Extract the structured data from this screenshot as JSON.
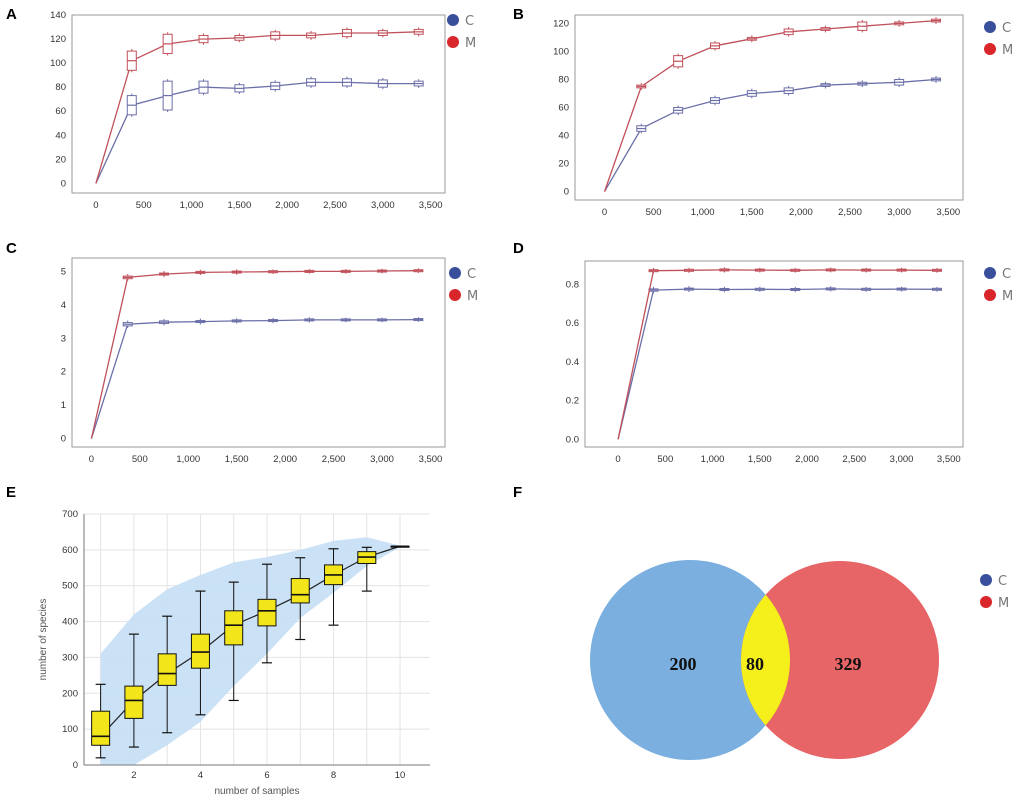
{
  "colors": {
    "C": "#3a4f9b",
    "M": "#d9262b",
    "C_line": "#6b6fa8",
    "M_line": "#c0505a",
    "box_yellow": "#f2e51a",
    "band": "#c5dff5",
    "venn_left": "#7aafe0",
    "venn_right": "#e76567",
    "venn_overlap": "#f5f01c"
  },
  "legend": {
    "C": "C",
    "M": "M"
  },
  "chart_data": [
    {
      "panel": "A",
      "type": "line",
      "x": [
        0,
        375,
        750,
        1125,
        1500,
        1875,
        2250,
        2625,
        3000,
        3375
      ],
      "xticks": [
        0,
        500,
        1000,
        1500,
        2000,
        2500,
        3000,
        3500
      ],
      "xtick_labels": [
        "0",
        "500",
        "1,000",
        "1,500",
        "2,000",
        "2,500",
        "3,000",
        "3,500"
      ],
      "yticks": [
        0,
        20,
        40,
        60,
        80,
        100,
        120,
        140
      ],
      "xlim": [
        -250,
        3650
      ],
      "ylim": [
        -8,
        140
      ],
      "grid": false,
      "legend": "top-right",
      "series": [
        {
          "name": "C",
          "values": [
            0,
            65,
            73,
            80,
            79,
            81,
            84,
            84,
            83,
            83
          ],
          "spread": [
            0,
            8,
            12,
            5,
            3,
            3,
            3,
            3,
            3,
            2
          ]
        },
        {
          "name": "M",
          "values": [
            0,
            102,
            116,
            120,
            121,
            123,
            123,
            125,
            125,
            126
          ],
          "spread": [
            0,
            8,
            8,
            3,
            2,
            3,
            2,
            3,
            2,
            2
          ]
        }
      ]
    },
    {
      "panel": "B",
      "type": "line",
      "x": [
        0,
        375,
        750,
        1125,
        1500,
        1875,
        2250,
        2625,
        3000,
        3375
      ],
      "xticks": [
        0,
        500,
        1000,
        1500,
        2000,
        2500,
        3000,
        3500
      ],
      "xtick_labels": [
        "0",
        "500",
        "1,000",
        "1,500",
        "2,000",
        "2,500",
        "3,000",
        "3,500"
      ],
      "yticks": [
        0,
        20,
        40,
        60,
        80,
        100,
        120
      ],
      "xlim": [
        -300,
        3650
      ],
      "ylim": [
        -6,
        126
      ],
      "grid": false,
      "legend": "top-right",
      "series": [
        {
          "name": "C",
          "values": [
            0,
            45,
            58,
            65,
            70,
            72,
            76,
            77,
            78,
            80
          ],
          "spread": [
            0,
            2,
            2,
            2,
            2,
            2,
            1,
            1,
            2,
            1
          ]
        },
        {
          "name": "M",
          "values": [
            0,
            75,
            93,
            104,
            109,
            114,
            116,
            118,
            120,
            122
          ],
          "spread": [
            0,
            1,
            4,
            2,
            1,
            2,
            1,
            3,
            1,
            1
          ]
        }
      ]
    },
    {
      "panel": "C",
      "type": "line",
      "x": [
        0,
        375,
        750,
        1125,
        1500,
        1875,
        2250,
        2625,
        3000,
        3375
      ],
      "xticks": [
        0,
        500,
        1000,
        1500,
        2000,
        2500,
        3000,
        3500
      ],
      "xtick_labels": [
        "0",
        "500",
        "1,000",
        "1,500",
        "2,000",
        "2,500",
        "3,000",
        "3,500"
      ],
      "yticks": [
        0,
        1,
        2,
        3,
        4,
        5
      ],
      "xlim": [
        -200,
        3650
      ],
      "ylim": [
        -0.25,
        5.4
      ],
      "grid": false,
      "legend": "top-right",
      "series": [
        {
          "name": "C",
          "values": [
            0,
            3.42,
            3.48,
            3.5,
            3.52,
            3.53,
            3.55,
            3.55,
            3.55,
            3.56
          ],
          "spread": [
            0,
            0.05,
            0.04,
            0.03,
            0.02,
            0.02,
            0.02,
            0.01,
            0.01,
            0.01
          ]
        },
        {
          "name": "M",
          "values": [
            0,
            4.82,
            4.92,
            4.97,
            4.98,
            4.99,
            5.0,
            5.0,
            5.01,
            5.02
          ],
          "spread": [
            0,
            0.04,
            0.03,
            0.02,
            0.02,
            0.01,
            0.01,
            0.01,
            0.01,
            0.01
          ]
        }
      ]
    },
    {
      "panel": "D",
      "type": "line",
      "x": [
        0,
        375,
        750,
        1125,
        1500,
        1875,
        2250,
        2625,
        3000,
        3375
      ],
      "xticks": [
        0,
        500,
        1000,
        1500,
        2000,
        2500,
        3000,
        3500
      ],
      "xtick_labels": [
        "0",
        "500",
        "1,000",
        "1,500",
        "2,000",
        "2,500",
        "3,000",
        "3,500"
      ],
      "yticks": [
        0.0,
        0.2,
        0.4,
        0.6,
        0.8
      ],
      "ytick_labels": [
        "0.0",
        "0.2",
        "0.4",
        "0.6",
        "0.8"
      ],
      "xlim": [
        -350,
        3650
      ],
      "ylim": [
        -0.04,
        0.92
      ],
      "grid": false,
      "legend": "top-right",
      "series": [
        {
          "name": "C",
          "values": [
            0,
            0.77,
            0.775,
            0.773,
            0.774,
            0.773,
            0.776,
            0.774,
            0.775,
            0.774
          ],
          "spread": [
            0,
            0.006,
            0.005,
            0.004,
            0.003,
            0.003,
            0.003,
            0.002,
            0.002,
            0.002
          ]
        },
        {
          "name": "M",
          "values": [
            0,
            0.87,
            0.872,
            0.874,
            0.873,
            0.872,
            0.874,
            0.873,
            0.873,
            0.872
          ],
          "spread": [
            0,
            0.004,
            0.003,
            0.003,
            0.002,
            0.002,
            0.002,
            0.002,
            0.002,
            0.002
          ]
        }
      ]
    },
    {
      "panel": "E",
      "type": "box",
      "xlabel": "number of samples",
      "ylabel": "number of species",
      "xticks": [
        2,
        4,
        6,
        8,
        10
      ],
      "yticks": [
        0,
        100,
        200,
        300,
        400,
        500,
        600,
        700
      ],
      "xlim": [
        0.5,
        10.9
      ],
      "ylim": [
        0,
        700
      ],
      "grid": true,
      "x": [
        1,
        2,
        3,
        4,
        5,
        6,
        7,
        8,
        9,
        10
      ],
      "median": [
        80,
        180,
        255,
        315,
        390,
        430,
        475,
        530,
        580,
        610
      ],
      "q1": [
        55,
        130,
        222,
        270,
        335,
        388,
        452,
        503,
        562,
        610
      ],
      "q3": [
        150,
        220,
        310,
        365,
        430,
        462,
        520,
        558,
        595,
        610
      ],
      "whisker_low": [
        20,
        50,
        90,
        140,
        180,
        285,
        350,
        390,
        485,
        610
      ],
      "whisker_high": [
        225,
        365,
        415,
        485,
        510,
        560,
        578,
        603,
        607,
        610
      ],
      "band_low": [
        0,
        0,
        55,
        120,
        220,
        310,
        410,
        480,
        555,
        608
      ],
      "band_high": [
        310,
        420,
        490,
        530,
        565,
        580,
        600,
        625,
        635,
        612
      ]
    },
    {
      "panel": "F",
      "type": "venn",
      "sets": [
        {
          "name": "C",
          "only": 200
        },
        {
          "name": "M",
          "only": 329
        }
      ],
      "overlap": 80
    }
  ]
}
